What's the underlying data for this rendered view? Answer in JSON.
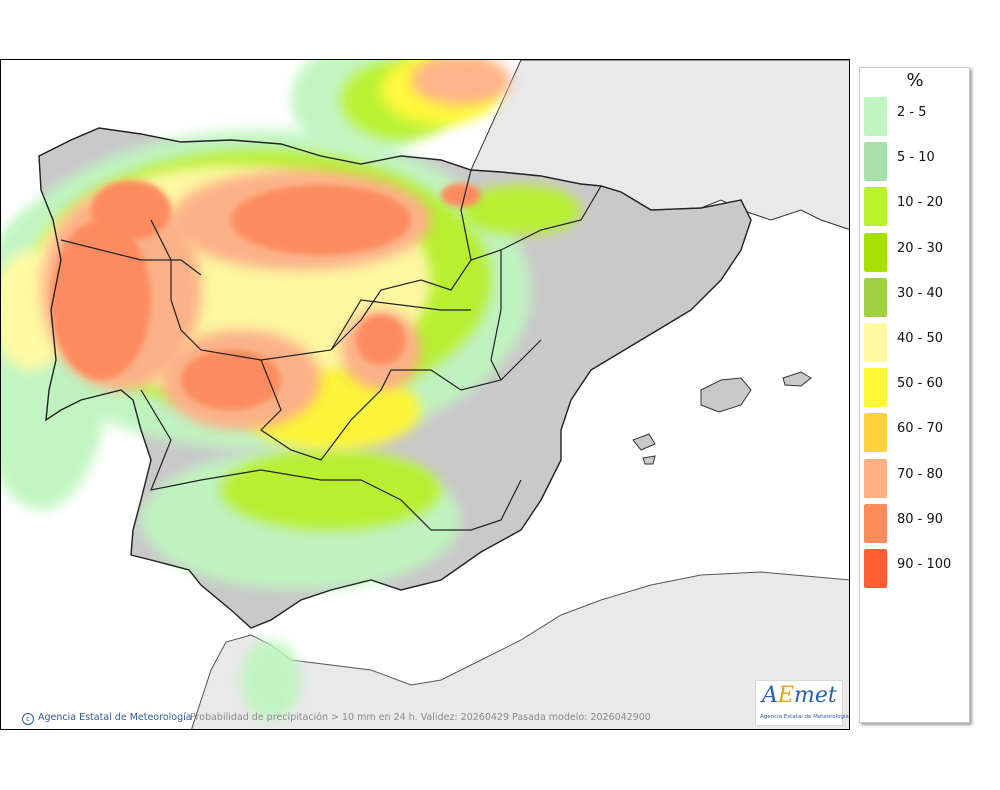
{
  "legend": {
    "unit": "%",
    "items": [
      {
        "label": "2 - 5",
        "color": "#c0f5c0"
      },
      {
        "label": "5 - 10",
        "color": "#a9dfa9"
      },
      {
        "label": "10 - 20",
        "color": "#b8f22a"
      },
      {
        "label": "20 - 30",
        "color": "#a6e000"
      },
      {
        "label": "30 - 40",
        "color": "#9fd142"
      },
      {
        "label": "40 - 50",
        "color": "#fffaa0"
      },
      {
        "label": "50 - 60",
        "color": "#fff833"
      },
      {
        "label": "60 - 70",
        "color": "#ffd23c"
      },
      {
        "label": "70 - 80",
        "color": "#ffb085"
      },
      {
        "label": "80 - 90",
        "color": "#ff8a5a"
      },
      {
        "label": "90 - 100",
        "color": "#ff5e32"
      }
    ]
  },
  "footer": {
    "credit": "Agencia Estatal de Meteorología",
    "caption": "Probabilidad de precipitación > 10 mm en 24 h. Validez: 20260429 Pasada modelo: 2026042900"
  },
  "logo": {
    "subtitle": "Agencia Estatal de Meteorología"
  },
  "map": {
    "land_color": "#c9c9c9",
    "sea_color": "#ffffff",
    "foreign_land_color": "#e9e9e9",
    "border_color": "#222222"
  }
}
